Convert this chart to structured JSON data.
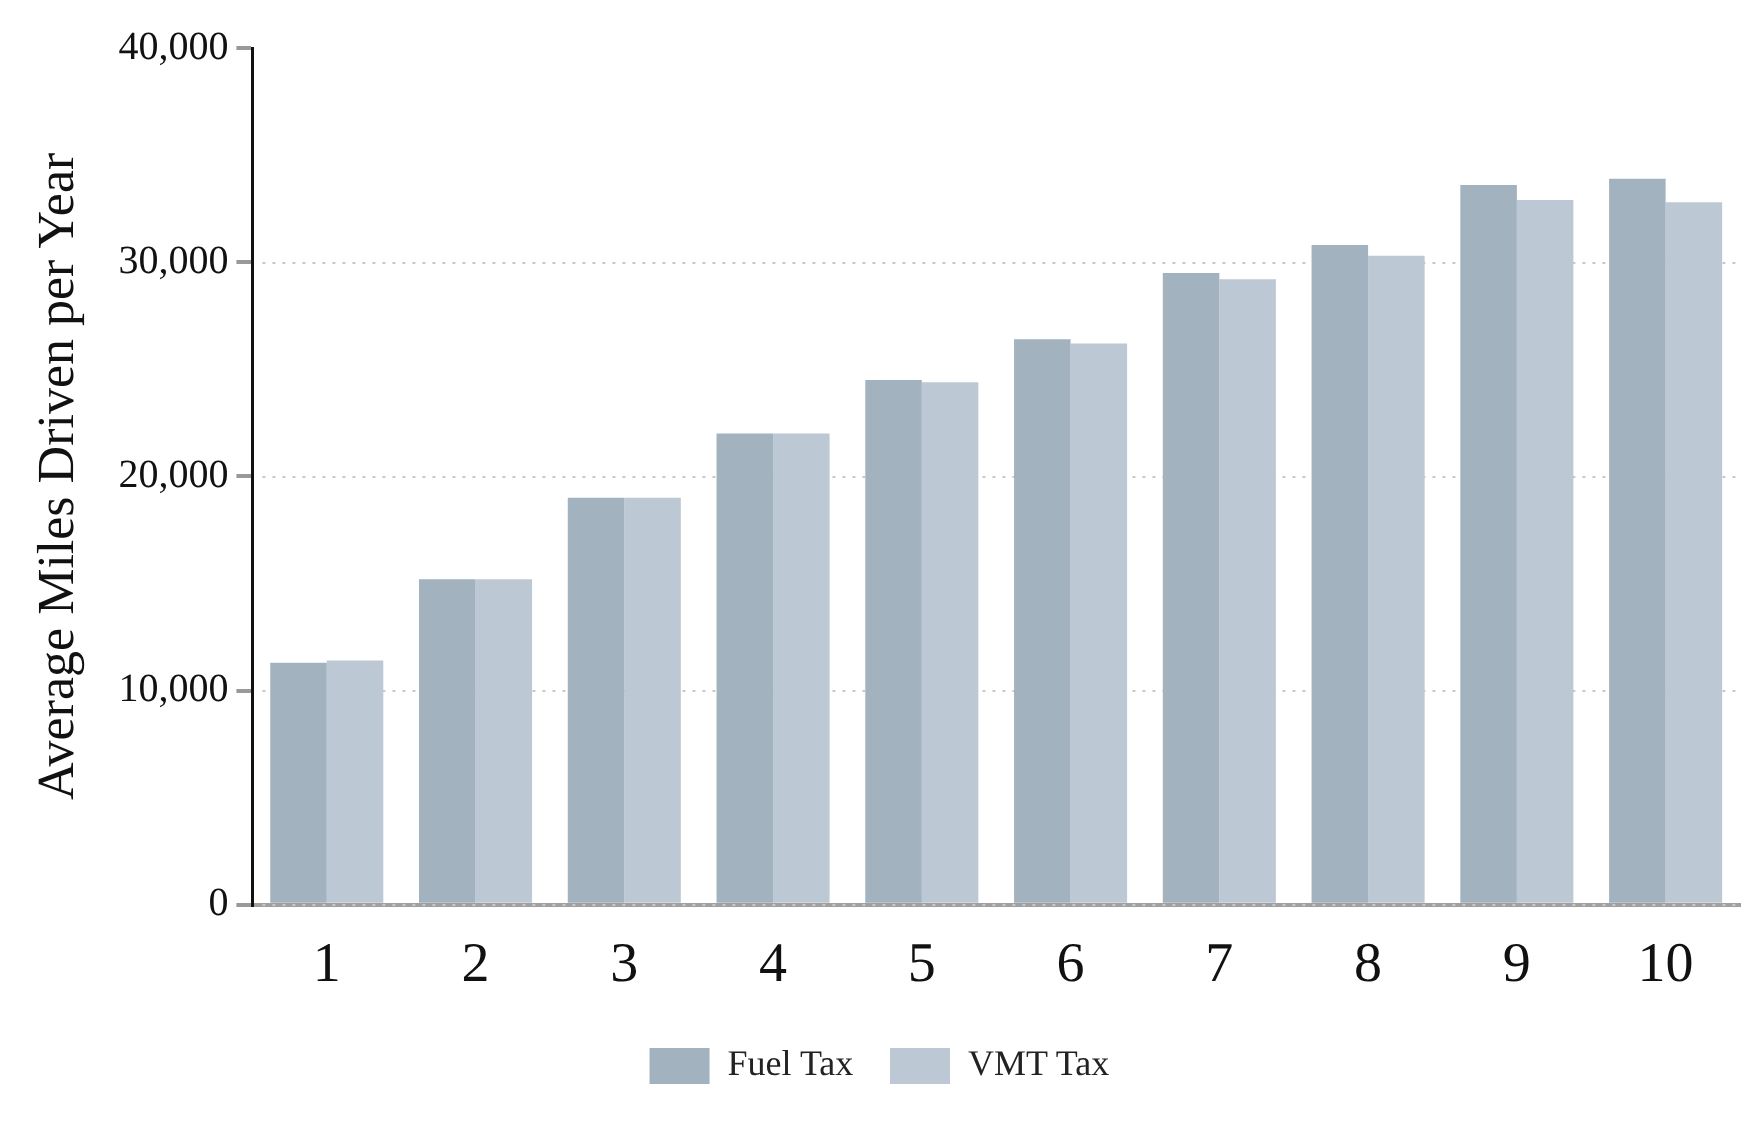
{
  "chart_data": {
    "type": "bar",
    "ylabel": "Average Miles Driven per Year",
    "categories": [
      "1",
      "2",
      "3",
      "4",
      "5",
      "6",
      "7",
      "8",
      "9",
      "10"
    ],
    "series": [
      {
        "name": "Fuel Tax",
        "color": "#a2b2be",
        "values": [
          11300,
          15200,
          19000,
          22000,
          24500,
          26400,
          29500,
          30800,
          33600,
          33900
        ]
      },
      {
        "name": "VMT Tax",
        "color": "#bcc8d4",
        "values": [
          11400,
          15200,
          19000,
          22000,
          24400,
          26200,
          29200,
          30300,
          32900,
          32800
        ]
      }
    ],
    "ylim": [
      0,
      40000
    ],
    "yticks": [
      {
        "value": 0,
        "label": "0"
      },
      {
        "value": 10000,
        "label": "10,000"
      },
      {
        "value": 20000,
        "label": "20,000"
      },
      {
        "value": 30000,
        "label": "30,000"
      },
      {
        "value": 40000,
        "label": "40,000"
      }
    ],
    "grid": "y",
    "legend": "bottom"
  }
}
